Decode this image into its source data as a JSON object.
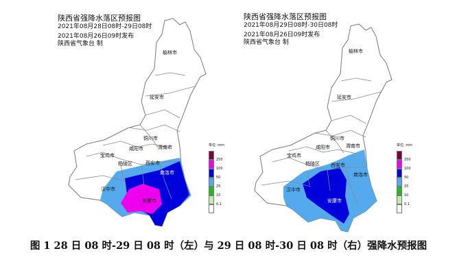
{
  "maps": [
    {
      "title": "陕西省强降水落区预报图",
      "valid_period": "2021年08月28日08时-29日08时",
      "issued": "2021年08月26日09时发布",
      "producer": "陕西省气象台  制",
      "cities": [
        "榆林市",
        "延安市",
        "铜川市",
        "宝鸡市",
        "咸阳市",
        "渭南市",
        "杨陵区",
        "西安市",
        "商洛市",
        "汉中市",
        "安康市"
      ],
      "forecast_zones": [
        "25-50 mm",
        "50-100 mm",
        "100-250 mm"
      ]
    },
    {
      "title": "陕西省强降水落区预报图",
      "valid_period": "2021年08月29日08时-30日08时",
      "issued": "2021年08月26日09时发布",
      "producer": "陕西省气象台  制",
      "cities": [
        "榆林市",
        "延安市",
        "铜川市",
        "宝鸡市",
        "咸阳市",
        "渭南市",
        "杨陵区",
        "西安市",
        "商洛市",
        "汉中市",
        "安康市"
      ],
      "forecast_zones": [
        "25-50 mm",
        "50-100 mm"
      ]
    }
  ],
  "legend": {
    "unit": "单位: mm",
    "ticks": [
      "250",
      "100",
      "50",
      "25",
      "10",
      "0.1"
    ],
    "colors": [
      "#7a0040",
      "#ee00ee",
      "#0000dd",
      "#55aaee",
      "#22bb22",
      "#bbeeaa",
      "#ffffff"
    ]
  },
  "caption": "图 1  28 日 08 时-29 日 08 时（左）与 29 日 08 时-30 日 08 时（右）强降水预报图"
}
